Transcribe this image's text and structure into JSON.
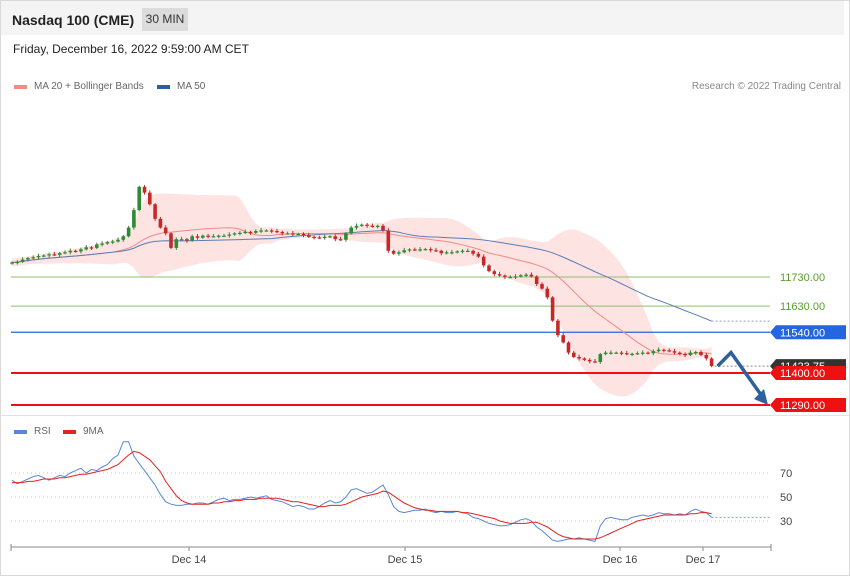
{
  "header": {
    "title": "Nasdaq 100 (CME)",
    "timeframe": "30 MIN",
    "datetime": "Friday, December 16, 2022 9:59:00 AM CET"
  },
  "price_legend": [
    {
      "label": "MA 20 + Bollinger Bands",
      "color": "#f08a85"
    },
    {
      "label": "MA 50",
      "color": "#2e5f9e"
    }
  ],
  "credit": "Research © 2022 Trading Central",
  "rsi_legend": [
    {
      "label": "RSI",
      "color": "#5a86d8"
    },
    {
      "label": "9MA",
      "color": "#e52222"
    }
  ],
  "colors": {
    "up_candle": "#2f8a34",
    "down_candle": "#c62828",
    "support": "#ee1111",
    "resistance_green": "#8cc16a",
    "pivot_blue": "#2466dd",
    "bollinger_fill": "#fde0df",
    "ma20": "#f08a85",
    "ma50": "#5b7db5",
    "arrow": "#2e5f9e"
  },
  "chart_data": [
    {
      "type": "candlestick",
      "title": "Nasdaq 100 (CME)",
      "timeframe": "30 MIN",
      "y_range": [
        11260,
        12060
      ],
      "x_ticks": [
        "Dec 14",
        "Dec 15",
        "Dec 16",
        "Dec 17"
      ],
      "last_price": "11423.75",
      "levels": [
        {
          "value": 11730,
          "label": "11730.00",
          "kind": "resistance",
          "style": "thin-green"
        },
        {
          "value": 11630,
          "label": "11630.00",
          "kind": "resistance",
          "style": "thin-green"
        },
        {
          "value": 11540,
          "label": "11540.00",
          "kind": "pivot",
          "style": "blue"
        },
        {
          "value": 11400,
          "label": "11400.00",
          "kind": "support",
          "style": "red"
        },
        {
          "value": 11290,
          "label": "11290.00",
          "kind": "support",
          "style": "red"
        }
      ],
      "forecast_path": [
        11423.75,
        11470,
        11290
      ],
      "close": [
        11780,
        11782,
        11790,
        11795,
        11798,
        11802,
        11804,
        11808,
        11806,
        11812,
        11815,
        11820,
        11818,
        11825,
        11832,
        11830,
        11842,
        11845,
        11850,
        11852,
        11858,
        11870,
        11900,
        11960,
        12040,
        12020,
        11980,
        11930,
        11900,
        11880,
        11830,
        11860,
        11860,
        11855,
        11870,
        11865,
        11872,
        11870,
        11870,
        11872,
        11872,
        11876,
        11880,
        11882,
        11885,
        11882,
        11888,
        11890,
        11890,
        11888,
        11885,
        11880,
        11880,
        11878,
        11878,
        11874,
        11868,
        11866,
        11865,
        11868,
        11870,
        11860,
        11858,
        11880,
        11900,
        11906,
        11910,
        11906,
        11904,
        11906,
        11890,
        11820,
        11810,
        11815,
        11822,
        11825,
        11824,
        11825,
        11826,
        11822,
        11820,
        11812,
        11815,
        11815,
        11818,
        11820,
        11820,
        11810,
        11800,
        11770,
        11750,
        11740,
        11735,
        11730,
        11730,
        11732,
        11736,
        11738,
        11732,
        11706,
        11690,
        11660,
        11580,
        11530,
        11505,
        11470,
        11455,
        11450,
        11445,
        11440,
        11438,
        11465,
        11470,
        11470,
        11470,
        11468,
        11465,
        11466,
        11468,
        11470,
        11468,
        11475,
        11480,
        11478,
        11475,
        11470,
        11465,
        11462,
        11470,
        11472,
        11462,
        11450,
        11423.75
      ]
    },
    {
      "type": "line",
      "title": "RSI",
      "series": [
        {
          "name": "RSI",
          "color": "#5a86d8"
        },
        {
          "name": "9MA",
          "color": "#e52222"
        }
      ],
      "y_ticks": [
        70,
        50,
        30
      ],
      "ylim": [
        10,
        100
      ],
      "rsi": [
        64,
        61,
        63,
        65,
        67,
        68,
        66,
        64,
        66,
        68,
        67,
        70,
        72,
        74,
        70,
        73,
        72,
        75,
        77,
        82,
        85,
        96,
        96,
        84,
        78,
        72,
        66,
        60,
        52,
        46,
        44,
        43,
        43,
        44,
        44,
        45,
        45,
        44,
        46,
        48,
        49,
        47,
        48,
        48,
        49,
        50,
        49,
        50,
        51,
        48,
        47,
        46,
        44,
        42,
        43,
        42,
        40,
        40,
        42,
        45,
        47,
        45,
        46,
        50,
        56,
        57,
        55,
        53,
        54,
        57,
        60,
        52,
        42,
        38,
        37,
        38,
        39,
        39,
        40,
        38,
        37,
        38,
        37,
        37,
        38,
        37,
        36,
        33,
        32,
        30,
        28,
        27,
        26,
        26,
        27,
        29,
        31,
        32,
        30,
        25,
        22,
        18,
        14,
        13,
        14,
        15,
        15,
        16,
        15,
        14,
        13,
        26,
        32,
        33,
        32,
        31,
        31,
        33,
        34,
        35,
        34,
        35,
        37,
        36,
        36,
        35,
        36,
        35,
        38,
        40,
        38,
        37,
        33
      ],
      "ma9": [
        62,
        62,
        62,
        63,
        63,
        64,
        65,
        65,
        65,
        66,
        66,
        67,
        68,
        69,
        69,
        70,
        71,
        72,
        73,
        75,
        77,
        81,
        85,
        88,
        87,
        84,
        81,
        76,
        71,
        63,
        57,
        51,
        47,
        45,
        44,
        44,
        44,
        44,
        45,
        45,
        46,
        46,
        47,
        47,
        48,
        48,
        48,
        49,
        49,
        49,
        49,
        48,
        47,
        46,
        46,
        45,
        44,
        43,
        42,
        42,
        43,
        43,
        43,
        44,
        46,
        48,
        50,
        51,
        52,
        53,
        55,
        54,
        51,
        48,
        45,
        43,
        41,
        40,
        39,
        39,
        38,
        38,
        38,
        38,
        38,
        37,
        37,
        36,
        35,
        34,
        33,
        32,
        30,
        29,
        28,
        28,
        28,
        28,
        29,
        29,
        27,
        25,
        22,
        19,
        17,
        16,
        15,
        15,
        15,
        15,
        15,
        16,
        18,
        20,
        22,
        24,
        26,
        28,
        30,
        31,
        32,
        33,
        34,
        35,
        35,
        35,
        35,
        35,
        36,
        36,
        37,
        37,
        36
      ]
    }
  ]
}
